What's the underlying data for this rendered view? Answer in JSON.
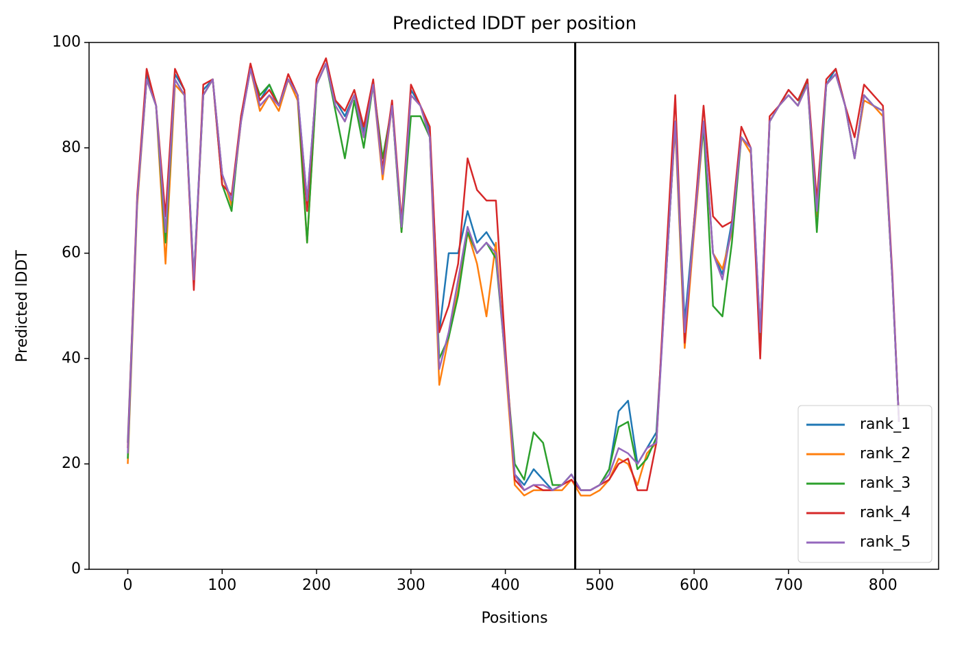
{
  "chart_data": {
    "type": "line",
    "title": "Predicted lDDT per position",
    "xlabel": "Positions",
    "ylabel": "Predicted lDDT",
    "xlim": [
      -41,
      859
    ],
    "ylim": [
      0,
      100
    ],
    "xticks": [
      0,
      100,
      200,
      300,
      400,
      500,
      600,
      700,
      800
    ],
    "yticks": [
      0,
      20,
      40,
      60,
      80,
      100
    ],
    "vline": 474,
    "vline_color": "#000000",
    "legend": "lower right",
    "x": [
      0,
      10,
      20,
      30,
      40,
      50,
      60,
      70,
      80,
      90,
      100,
      110,
      120,
      130,
      140,
      150,
      160,
      170,
      180,
      190,
      200,
      210,
      220,
      230,
      240,
      250,
      260,
      270,
      280,
      290,
      300,
      310,
      320,
      330,
      340,
      350,
      360,
      370,
      380,
      390,
      400,
      410,
      420,
      430,
      440,
      450,
      460,
      470,
      480,
      490,
      500,
      510,
      520,
      530,
      540,
      550,
      560,
      570,
      580,
      590,
      600,
      610,
      620,
      630,
      640,
      650,
      660,
      670,
      680,
      690,
      700,
      710,
      720,
      730,
      740,
      750,
      760,
      770,
      780,
      790,
      800,
      810,
      817
    ],
    "series": [
      {
        "name": "rank_1",
        "color": "#1f77b4",
        "values": [
          24,
          70,
          94,
          88,
          63,
          94,
          91,
          55,
          91,
          93,
          75,
          70,
          85,
          95,
          89,
          92,
          88,
          93,
          90,
          70,
          92,
          96,
          89,
          86,
          90,
          83,
          92,
          76,
          88,
          65,
          91,
          88,
          83,
          45,
          60,
          60,
          68,
          62,
          64,
          61,
          40,
          18,
          16,
          19,
          17,
          15,
          16,
          18,
          15,
          15,
          16,
          19,
          30,
          32,
          20,
          23,
          26,
          55,
          85,
          47,
          66,
          85,
          60,
          56,
          66,
          82,
          80,
          45,
          85,
          88,
          91,
          89,
          93,
          68,
          92,
          95,
          88,
          78,
          90,
          88,
          87,
          55,
          28
        ]
      },
      {
        "name": "rank_2",
        "color": "#ff7f0e",
        "values": [
          20,
          69,
          93,
          88,
          58,
          92,
          90,
          54,
          90,
          93,
          75,
          69,
          85,
          95,
          87,
          90,
          87,
          93,
          89,
          62,
          92,
          96,
          88,
          85,
          90,
          82,
          92,
          74,
          88,
          64,
          90,
          88,
          82,
          35,
          44,
          53,
          64,
          58,
          48,
          62,
          39,
          16,
          14,
          15,
          15,
          15,
          15,
          17,
          14,
          14,
          15,
          17,
          21,
          20,
          16,
          22,
          24,
          56,
          84,
          42,
          64,
          84,
          60,
          57,
          64,
          82,
          79,
          44,
          85,
          88,
          90,
          88,
          92,
          67,
          92,
          94,
          88,
          78,
          89,
          88,
          86,
          55,
          28
        ]
      },
      {
        "name": "rank_3",
        "color": "#2ca02c",
        "values": [
          21,
          70,
          93,
          88,
          62,
          93,
          90,
          55,
          90,
          93,
          73,
          68,
          86,
          95,
          90,
          92,
          88,
          93,
          90,
          62,
          92,
          96,
          87,
          78,
          89,
          80,
          92,
          78,
          88,
          64,
          86,
          86,
          82,
          40,
          44,
          52,
          64,
          60,
          62,
          59,
          40,
          20,
          17,
          26,
          24,
          16,
          16,
          18,
          15,
          15,
          16,
          19,
          27,
          28,
          19,
          21,
          25,
          55,
          85,
          44,
          66,
          84,
          50,
          48,
          62,
          82,
          80,
          44,
          85,
          88,
          90,
          88,
          93,
          64,
          92,
          94,
          88,
          78,
          90,
          88,
          87,
          55,
          28
        ]
      },
      {
        "name": "rank_4",
        "color": "#d62728",
        "values": [
          23,
          71,
          95,
          88,
          67,
          95,
          91,
          53,
          92,
          93,
          73,
          71,
          86,
          96,
          89,
          91,
          88,
          94,
          90,
          68,
          93,
          97,
          89,
          87,
          91,
          84,
          93,
          76,
          89,
          66,
          92,
          88,
          84,
          45,
          50,
          58,
          78,
          72,
          70,
          70,
          42,
          17,
          15,
          16,
          15,
          15,
          16,
          17,
          15,
          15,
          16,
          17,
          20,
          21,
          15,
          15,
          24,
          58,
          90,
          43,
          66,
          88,
          67,
          65,
          66,
          84,
          80,
          40,
          86,
          88,
          91,
          89,
          93,
          70,
          93,
          95,
          88,
          82,
          92,
          90,
          88,
          56,
          28
        ]
      },
      {
        "name": "rank_5",
        "color": "#9467bd",
        "values": [
          22,
          70,
          93,
          88,
          64,
          93,
          90,
          55,
          90,
          93,
          75,
          70,
          85,
          95,
          88,
          90,
          88,
          93,
          90,
          70,
          92,
          96,
          88,
          85,
          90,
          82,
          92,
          75,
          88,
          65,
          90,
          88,
          82,
          38,
          45,
          55,
          65,
          60,
          62,
          60,
          40,
          18,
          15,
          16,
          16,
          15,
          16,
          18,
          15,
          15,
          16,
          18,
          23,
          22,
          20,
          23,
          24,
          55,
          85,
          45,
          65,
          85,
          60,
          55,
          65,
          82,
          80,
          45,
          85,
          88,
          90,
          88,
          92,
          68,
          92,
          94,
          88,
          78,
          90,
          88,
          87,
          55,
          28
        ]
      }
    ]
  }
}
